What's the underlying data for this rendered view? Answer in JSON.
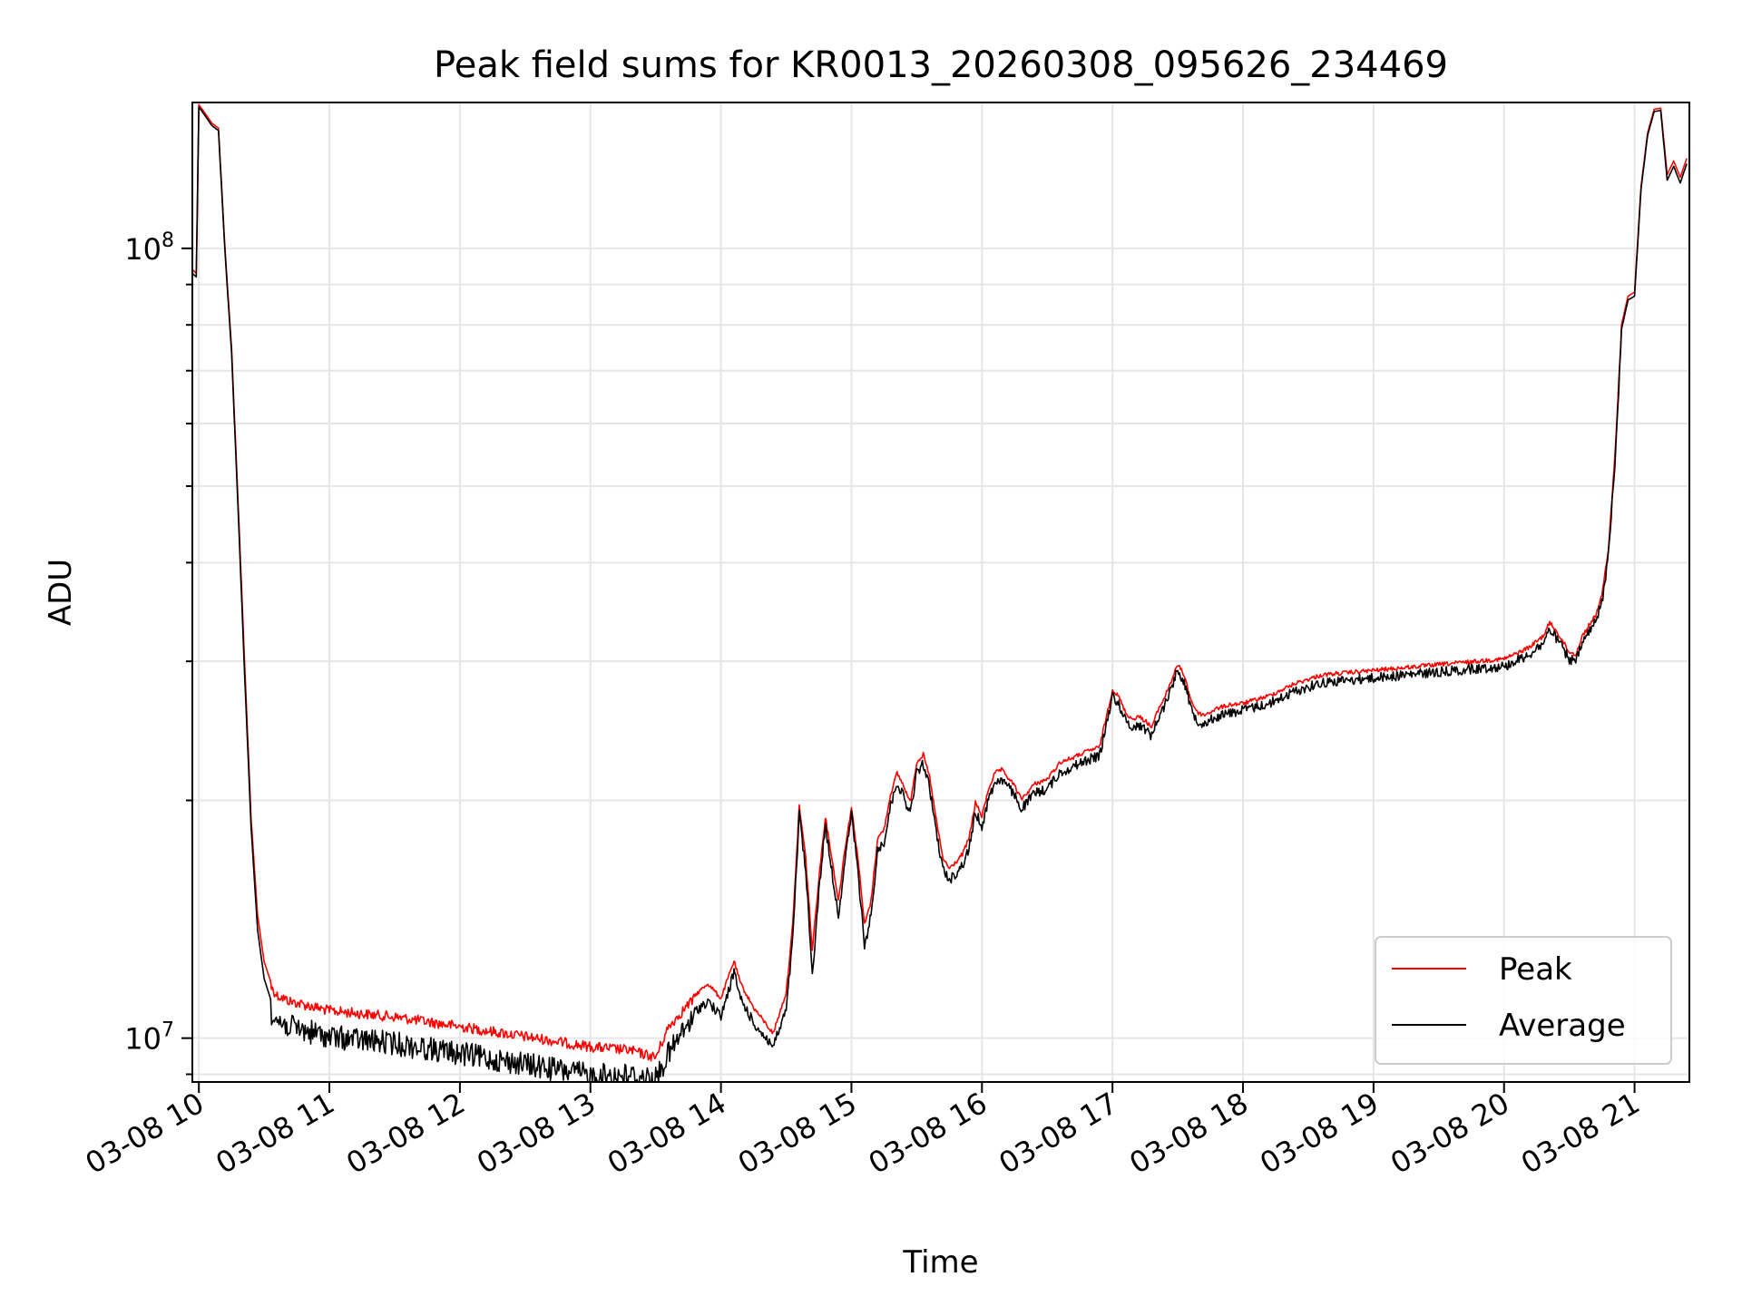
{
  "chart_data": {
    "type": "line",
    "title": "Peak field sums for KR0013_20260308_095626_234469",
    "xlabel": "Time",
    "ylabel": "ADU",
    "yscale": "log",
    "ylim": [
      8800000,
      153000000
    ],
    "xlim": [
      9.95,
      21.42
    ],
    "grid": true,
    "legend_position": "lower-right",
    "x_ticks": [
      {
        "value": 10,
        "label": "03-08 10"
      },
      {
        "value": 11,
        "label": "03-08 11"
      },
      {
        "value": 12,
        "label": "03-08 12"
      },
      {
        "value": 13,
        "label": "03-08 13"
      },
      {
        "value": 14,
        "label": "03-08 14"
      },
      {
        "value": 15,
        "label": "03-08 15"
      },
      {
        "value": 16,
        "label": "03-08 16"
      },
      {
        "value": 17,
        "label": "03-08 17"
      },
      {
        "value": 18,
        "label": "03-08 18"
      },
      {
        "value": 19,
        "label": "03-08 19"
      },
      {
        "value": 20,
        "label": "03-08 20"
      },
      {
        "value": 21,
        "label": "03-08 21"
      }
    ],
    "y_major_ticks": [
      {
        "value": 10000000,
        "base": "10",
        "exp": "7"
      },
      {
        "value": 100000000,
        "base": "10",
        "exp": "8"
      }
    ],
    "x": [
      9.95,
      9.98,
      10.0,
      10.05,
      10.1,
      10.15,
      10.2,
      10.25,
      10.3,
      10.35,
      10.4,
      10.45,
      10.5,
      10.55,
      10.6,
      10.7,
      10.8,
      11.0,
      11.5,
      12.0,
      12.5,
      13.0,
      13.3,
      13.5,
      13.6,
      13.75,
      13.9,
      14.0,
      14.1,
      14.15,
      14.25,
      14.4,
      14.5,
      14.55,
      14.6,
      14.65,
      14.7,
      14.75,
      14.8,
      14.85,
      14.9,
      14.95,
      15.0,
      15.05,
      15.1,
      15.15,
      15.2,
      15.25,
      15.3,
      15.35,
      15.4,
      15.45,
      15.5,
      15.55,
      15.6,
      15.65,
      15.7,
      15.75,
      15.8,
      15.85,
      15.9,
      15.95,
      16.0,
      16.05,
      16.1,
      16.15,
      16.2,
      16.25,
      16.3,
      16.35,
      16.4,
      16.5,
      16.6,
      16.7,
      16.8,
      16.9,
      17.0,
      17.05,
      17.1,
      17.15,
      17.2,
      17.25,
      17.3,
      17.35,
      17.4,
      17.45,
      17.5,
      17.55,
      17.6,
      17.65,
      17.7,
      17.8,
      17.9,
      18.0,
      18.2,
      18.4,
      18.6,
      18.8,
      19.0,
      19.2,
      19.4,
      19.6,
      19.8,
      20.0,
      20.1,
      20.2,
      20.3,
      20.35,
      20.4,
      20.45,
      20.5,
      20.55,
      20.6,
      20.65,
      20.7,
      20.75,
      20.8,
      20.85,
      20.9,
      20.95,
      21.0,
      21.05,
      21.1,
      21.15,
      21.2,
      21.25,
      21.3,
      21.35,
      21.4
    ],
    "series": [
      {
        "name": "Peak",
        "color": "#ff0000",
        "values": [
          94000000,
          93000000,
          152000000,
          148000000,
          144000000,
          142000000,
          100000000,
          75000000,
          48000000,
          30000000,
          19000000,
          14300000,
          12500000,
          11800000,
          11500000,
          11300000,
          11200000,
          11000000,
          10800000,
          10500000,
          10200000,
          9900000,
          9800000,
          9600000,
          10500000,
          11200000,
          11800000,
          11300000,
          12600000,
          11800000,
          11000000,
          10200000,
          11500000,
          14000000,
          19800000,
          17000000,
          13000000,
          16000000,
          19200000,
          17000000,
          15000000,
          17500000,
          19700000,
          17000000,
          14000000,
          15000000,
          18000000,
          18500000,
          20500000,
          21800000,
          21000000,
          20000000,
          22500000,
          23000000,
          21500000,
          19000000,
          17000000,
          16500000,
          16800000,
          17200000,
          18000000,
          20000000,
          19200000,
          20800000,
          21800000,
          22000000,
          21500000,
          21000000,
          20200000,
          20600000,
          21100000,
          21400000,
          22500000,
          22800000,
          23200000,
          23500000,
          27800000,
          27200000,
          26000000,
          25500000,
          25700000,
          25400000,
          24900000,
          26200000,
          27200000,
          28500000,
          29900000,
          29000000,
          27000000,
          26000000,
          25800000,
          26300000,
          26600000,
          26700000,
          27300000,
          28300000,
          29000000,
          29200000,
          29400000,
          29600000,
          29800000,
          30000000,
          30200000,
          30400000,
          30900000,
          31500000,
          32500000,
          33800000,
          33000000,
          32000000,
          31000000,
          30800000,
          32500000,
          33500000,
          34500000,
          36500000,
          42000000,
          55000000,
          80000000,
          87000000,
          88000000,
          120000000,
          140000000,
          150000000,
          150500000,
          124000000,
          129000000,
          123000000,
          130000000
        ]
      },
      {
        "name": "Average",
        "color": "#000000",
        "values": [
          93000000,
          92000000,
          151000000,
          147000000,
          143000000,
          141000000,
          99000000,
          74000000,
          47000000,
          29000000,
          18500000,
          13700000,
          11900000,
          11200000,
          10900000,
          10700000,
          10600000,
          10400000,
          10200000,
          9900000,
          9600000,
          9300000,
          9300000,
          9200000,
          9900000,
          10800000,
          11300000,
          10800000,
          12300000,
          11400000,
          10600000,
          9900000,
          11000000,
          13500000,
          19500000,
          16500000,
          12200000,
          15500000,
          18900000,
          16500000,
          14500000,
          17000000,
          19500000,
          16500000,
          13200000,
          14500000,
          17500000,
          18000000,
          20000000,
          21400000,
          20500000,
          19500000,
          22000000,
          22600000,
          21000000,
          18500000,
          16600000,
          16100000,
          16400000,
          16800000,
          17600000,
          19600000,
          18800000,
          20400000,
          21400000,
          21600000,
          21100000,
          20600000,
          19800000,
          20200000,
          20700000,
          21000000,
          22000000,
          22400000,
          22800000,
          23100000,
          27500000,
          26900000,
          25600000,
          25100000,
          25300000,
          25000000,
          24500000,
          25800000,
          26800000,
          28200000,
          29700000,
          28700000,
          26600000,
          25600000,
          25400000,
          25900000,
          26200000,
          26400000,
          26900000,
          27900000,
          28600000,
          28800000,
          29000000,
          29200000,
          29400000,
          29600000,
          29800000,
          30000000,
          30500000,
          31100000,
          32100000,
          33400000,
          32600000,
          31600000,
          30600000,
          30400000,
          32100000,
          33100000,
          34100000,
          36100000,
          41500000,
          54500000,
          79000000,
          86000000,
          87000000,
          119000000,
          139000000,
          149000000,
          149500000,
          122000000,
          127000000,
          121000000,
          128000000
        ]
      }
    ]
  }
}
